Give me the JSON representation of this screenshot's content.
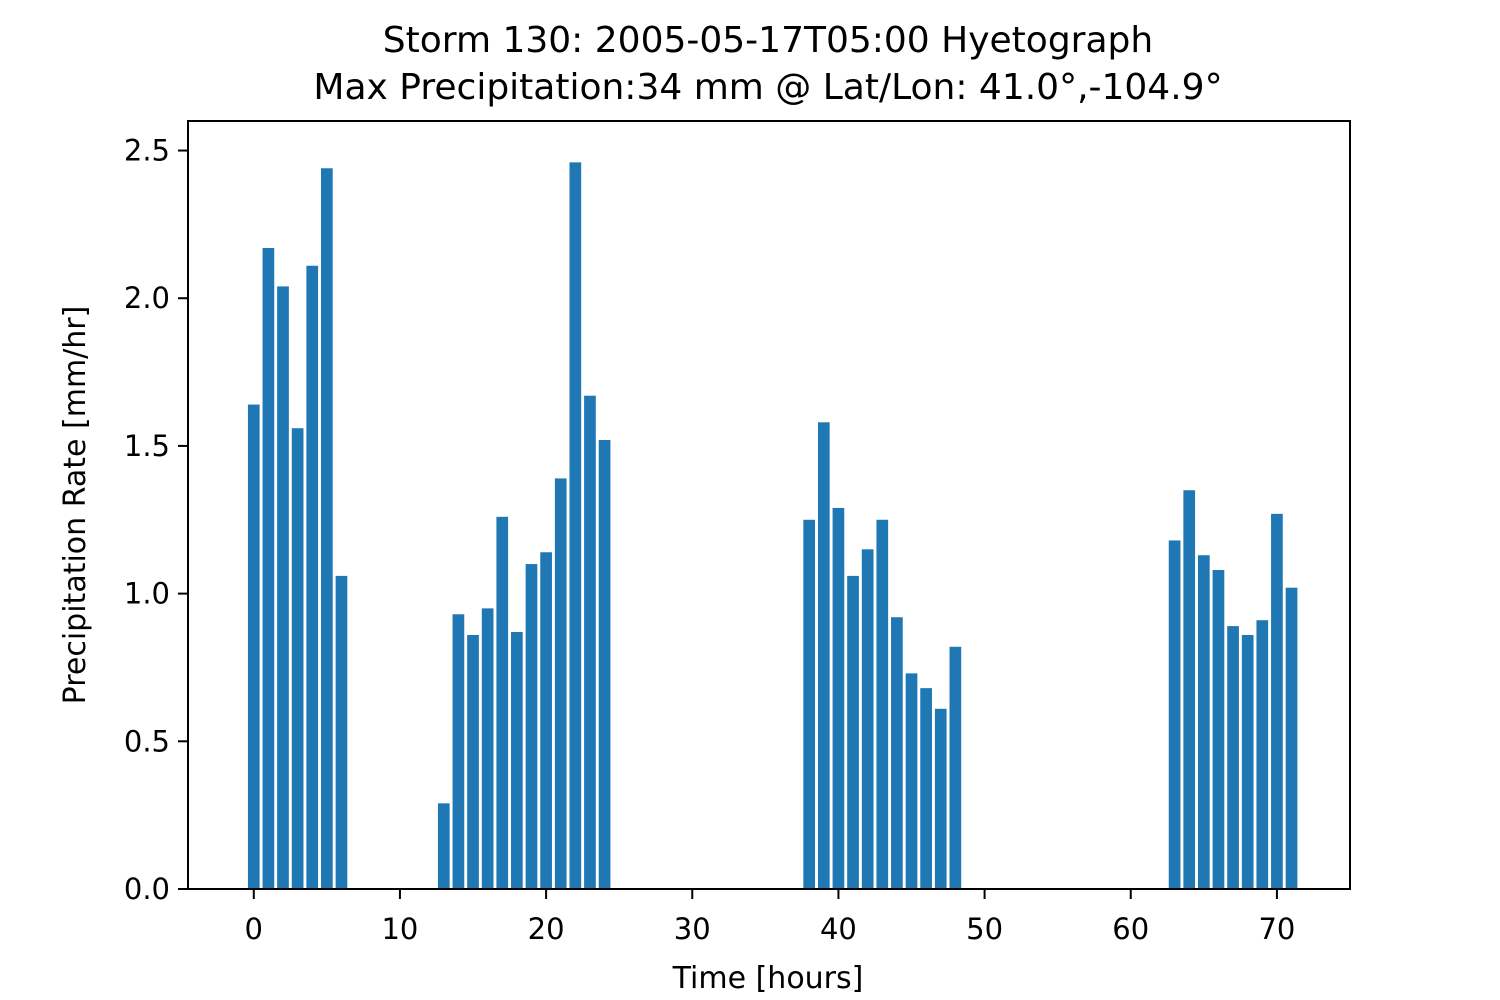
{
  "chart_data": {
    "type": "bar",
    "title": "Storm 130: 2005-05-17T05:00 Hyetograph",
    "subtitle": "Max Precipitation:34 mm @ Lat/Lon:  41.0°,-104.9°",
    "xlabel": "Time [hours]",
    "ylabel": "Precipitation Rate [mm/hr]",
    "xlim": [
      -4.5,
      75
    ],
    "ylim": [
      0,
      2.6
    ],
    "xticks": [
      0,
      10,
      20,
      30,
      40,
      50,
      60,
      70
    ],
    "xtick_labels": [
      "0",
      "10",
      "20",
      "30",
      "40",
      "50",
      "60",
      "70"
    ],
    "yticks": [
      0.0,
      0.5,
      1.0,
      1.5,
      2.0,
      2.5
    ],
    "ytick_labels": [
      "0.0",
      "0.5",
      "1.0",
      "1.5",
      "2.0",
      "2.5"
    ],
    "grid": false,
    "bar_color": "#1f77b4",
    "x": [
      0,
      1,
      2,
      3,
      4,
      5,
      6,
      13,
      14,
      15,
      16,
      17,
      18,
      19,
      20,
      21,
      22,
      23,
      24,
      38,
      39,
      40,
      41,
      42,
      43,
      44,
      45,
      46,
      47,
      48,
      63,
      64,
      65,
      66,
      67,
      68,
      69,
      70,
      71
    ],
    "values": [
      1.64,
      2.17,
      2.04,
      1.56,
      2.11,
      2.44,
      1.06,
      0.29,
      0.93,
      0.86,
      0.95,
      1.26,
      0.87,
      1.1,
      1.14,
      1.39,
      2.46,
      1.67,
      1.52,
      1.25,
      1.58,
      1.29,
      1.06,
      1.15,
      1.25,
      0.92,
      0.73,
      0.68,
      0.61,
      0.82,
      1.18,
      1.35,
      1.13,
      1.08,
      0.89,
      0.86,
      0.91,
      1.27,
      1.02
    ]
  }
}
